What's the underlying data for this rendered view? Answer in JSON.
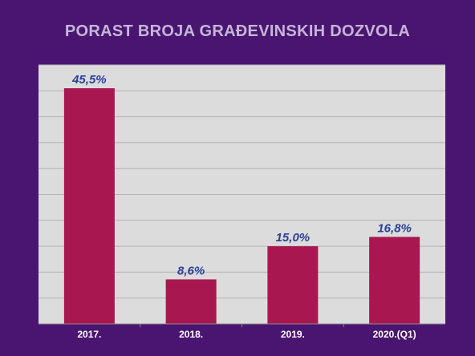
{
  "colors": {
    "background": "#4a1570",
    "plot_area": "#dcdcdc",
    "bar": "#a8174f",
    "data_label": "#2b3f96",
    "title": "#c4b6d8",
    "tick_label": "#ffffff",
    "grid": "#b3b3b3"
  },
  "chart_data": {
    "type": "bar",
    "title": "PORAST BROJA GRAĐEVINSKIH DOZVOLA",
    "xlabel": "",
    "ylabel": "",
    "categories": [
      "2017.",
      "2018.",
      "2019.",
      "2020.(Q1)"
    ],
    "values": [
      45.5,
      8.6,
      15.0,
      16.8
    ],
    "data_labels": [
      "45,5%",
      "8,6%",
      "15,0%",
      "16,8%"
    ],
    "ylim": [
      0,
      50
    ],
    "y_gridline_step": 5,
    "grid": true,
    "legend": "none"
  }
}
